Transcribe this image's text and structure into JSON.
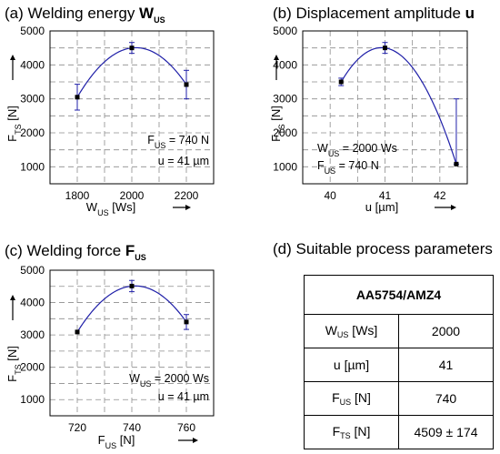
{
  "panels": [
    {
      "title_prefix": "(a) Welding energy ",
      "title_sym": "W",
      "title_sub": "US",
      "xlabel_main": "W",
      "xlabel_sub": "US",
      "xlabel_unit": " [Ws]",
      "ylabel_main": "F",
      "ylabel_sub": "TS",
      "ylabel_unit": " [N]",
      "annotations": [
        {
          "main": "F",
          "sub": "US",
          "rest": " = 740 N"
        },
        {
          "main": "u = 41 µm",
          "sub": "",
          "rest": ""
        }
      ]
    },
    {
      "title_prefix": "(b) Displacement amplitude ",
      "title_sym": "u",
      "title_sub": "",
      "xlabel_main": "u [µm]",
      "xlabel_sub": "",
      "xlabel_unit": "",
      "ylabel_main": "F",
      "ylabel_sub": "TS",
      "ylabel_unit": " [N]",
      "annotations": [
        {
          "main": "W",
          "sub": "US",
          "rest": " = 2000 Ws"
        },
        {
          "main": "F",
          "sub": "US",
          "rest": " = 740 N"
        }
      ]
    },
    {
      "title_prefix": "(c) Welding force ",
      "title_sym": "F",
      "title_sub": "US",
      "xlabel_main": "F",
      "xlabel_sub": "US",
      "xlabel_unit": " [N]",
      "ylabel_main": "F",
      "ylabel_sub": "TS",
      "ylabel_unit": " [N]",
      "annotations": [
        {
          "main": "W",
          "sub": "US",
          "rest": " = 2000 Ws"
        },
        {
          "main": "u = 41 µm",
          "sub": "",
          "rest": ""
        }
      ]
    }
  ],
  "table": {
    "title": "(d) Suitable process parameters",
    "header": "AA5754/AMZ4",
    "rows": [
      {
        "k_main": "W",
        "k_sub": "US",
        "k_unit": " [Ws]",
        "value": "2000"
      },
      {
        "k_main": "u [µm]",
        "k_sub": "",
        "k_unit": "",
        "value": "41"
      },
      {
        "k_main": "F",
        "k_sub": "US",
        "k_unit": " [N]",
        "value": "740"
      },
      {
        "k_main": "F",
        "k_sub": "TS",
        "k_unit": " [N]",
        "value": "4509 ± 174"
      }
    ]
  },
  "colors": {
    "series": "#1f1fa8",
    "grid": "#8c8c8c",
    "point": "#000000"
  },
  "chart_data": [
    {
      "type": "line",
      "x": [
        1800,
        2000,
        2200
      ],
      "y": [
        3050,
        4500,
        3420
      ],
      "error": [
        [
          380,
          380
        ],
        [
          160,
          160
        ],
        [
          420,
          420
        ]
      ],
      "xticks": [
        1800,
        2000,
        2200
      ],
      "yticks": [
        1000,
        2000,
        3000,
        4000,
        5000
      ],
      "xlim": [
        1700,
        2300
      ],
      "ylim": [
        500,
        5000
      ],
      "grid": true
    },
    {
      "type": "line",
      "x": [
        40.2,
        41,
        42.3
      ],
      "y": [
        3500,
        4500,
        1080
      ],
      "error": [
        [
          110,
          110
        ],
        [
          160,
          160
        ],
        [
          0,
          1920
        ]
      ],
      "xticks": [
        40,
        41,
        42
      ],
      "yticks": [
        1000,
        2000,
        3000,
        4000,
        5000
      ],
      "xlim": [
        39.5,
        42.5
      ],
      "ylim": [
        500,
        5000
      ],
      "grid": true
    },
    {
      "type": "line",
      "x": [
        720,
        740,
        760
      ],
      "y": [
        3090,
        4510,
        3400
      ],
      "error": [
        [
          0,
          0
        ],
        [
          174,
          174
        ],
        [
          230,
          230
        ]
      ],
      "xticks": [
        720,
        740,
        760
      ],
      "yticks": [
        1000,
        2000,
        3000,
        4000,
        5000
      ],
      "xlim": [
        710,
        770
      ],
      "ylim": [
        500,
        5000
      ],
      "grid": true
    }
  ]
}
